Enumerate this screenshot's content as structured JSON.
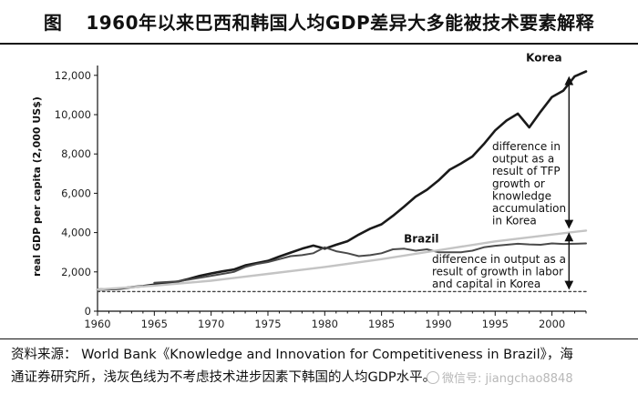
{
  "header": {
    "figure_marker": "图",
    "title": "1960年以来巴西和韩国人均GDP差异大多能被技术要素解释"
  },
  "source": {
    "line1": "资料来源： World Bank《Knowledge and Innovation for Competitiveness in Brazil》，海",
    "line2": "通证券研究所，浅灰色线为不考虑技术进步因素下韩国的人均GDP水平。"
  },
  "watermark": "微信号: jiangchao8848",
  "chart_data": {
    "type": "line",
    "title": "",
    "xlabel": "",
    "ylabel": "real GDP per capita (2,000 US$)",
    "xlim": [
      1960,
      2003
    ],
    "ylim": [
      0,
      12500
    ],
    "x_ticks": [
      1960,
      1965,
      1970,
      1975,
      1980,
      1985,
      1990,
      1995,
      2000
    ],
    "x_tick_labels": [
      "1960",
      "1965",
      "1970",
      "1975",
      "1980",
      "1985",
      "1990",
      "1995",
      "2000"
    ],
    "y_ticks": [
      0,
      2000,
      4000,
      6000,
      8000,
      10000,
      12000
    ],
    "y_tick_labels": [
      "0",
      "2,000",
      "4,000",
      "6,000",
      "8,000",
      "10,000",
      "12,000"
    ],
    "grid": false,
    "series": [
      {
        "name": "Korea",
        "color": "#1a1a1a",
        "x": [
          1960,
          1961,
          1962,
          1963,
          1964,
          1965,
          1966,
          1967,
          1968,
          1969,
          1970,
          1971,
          1972,
          1973,
          1974,
          1975,
          1976,
          1977,
          1978,
          1979,
          1980,
          1981,
          1982,
          1983,
          1984,
          1985,
          1986,
          1987,
          1988,
          1989,
          1990,
          1991,
          1992,
          1993,
          1994,
          1995,
          1996,
          1997,
          1998,
          1999,
          2000,
          2001,
          2002,
          2003
        ],
        "values": [
          1100,
          1120,
          1150,
          1220,
          1280,
          1350,
          1430,
          1500,
          1640,
          1800,
          1920,
          2030,
          2120,
          2330,
          2450,
          2560,
          2780,
          2980,
          3180,
          3340,
          3180,
          3380,
          3560,
          3900,
          4200,
          4420,
          4850,
          5330,
          5830,
          6180,
          6650,
          7200,
          7520,
          7870,
          8500,
          9200,
          9700,
          10050,
          9350,
          10150,
          10900,
          11220,
          11950,
          12200
        ]
      },
      {
        "name": "Brazil",
        "color": "#4a4a4a",
        "x": [
          1965,
          1966,
          1967,
          1968,
          1969,
          1970,
          1971,
          1972,
          1973,
          1974,
          1975,
          1976,
          1977,
          1978,
          1979,
          1980,
          1981,
          1982,
          1983,
          1984,
          1985,
          1986,
          1987,
          1988,
          1989,
          1990,
          1991,
          1992,
          1993,
          1994,
          1995,
          1996,
          1997,
          1998,
          1999,
          2000,
          2001,
          2002,
          2003
        ],
        "values": [
          1450,
          1480,
          1520,
          1600,
          1700,
          1800,
          1900,
          2000,
          2250,
          2400,
          2500,
          2650,
          2800,
          2850,
          2950,
          3250,
          3050,
          2950,
          2800,
          2850,
          2950,
          3150,
          3180,
          3080,
          3150,
          3000,
          3000,
          3000,
          3080,
          3250,
          3330,
          3380,
          3430,
          3400,
          3380,
          3450,
          3420,
          3430,
          3450
        ]
      },
      {
        "name": "",
        "color": "#c4c4c4",
        "x": [
          1960,
          1965,
          1970,
          1975,
          1980,
          1985,
          1990,
          1995,
          2000,
          2003
        ],
        "values": [
          1100,
          1300,
          1550,
          1900,
          2250,
          2650,
          3100,
          3550,
          3900,
          4100
        ]
      },
      {
        "name": "",
        "color": "#444444",
        "dashed": true,
        "x": [
          1960,
          2003
        ],
        "values": [
          1000,
          1000
        ]
      }
    ],
    "annotations": [
      {
        "text_lines": [
          "difference in",
          "output as a",
          "result of TFP",
          "growth or",
          "knowledge",
          "accumulation",
          "in Korea"
        ],
        "arrow_x": 2001.5,
        "arrow_from": 4100,
        "arrow_to": 12050
      },
      {
        "text_lines": [
          "difference in output as a",
          "result of growth in labor",
          "and capital in Korea"
        ],
        "arrow_x": 2001.5,
        "arrow_from": 1000,
        "arrow_to": 4100
      }
    ]
  }
}
